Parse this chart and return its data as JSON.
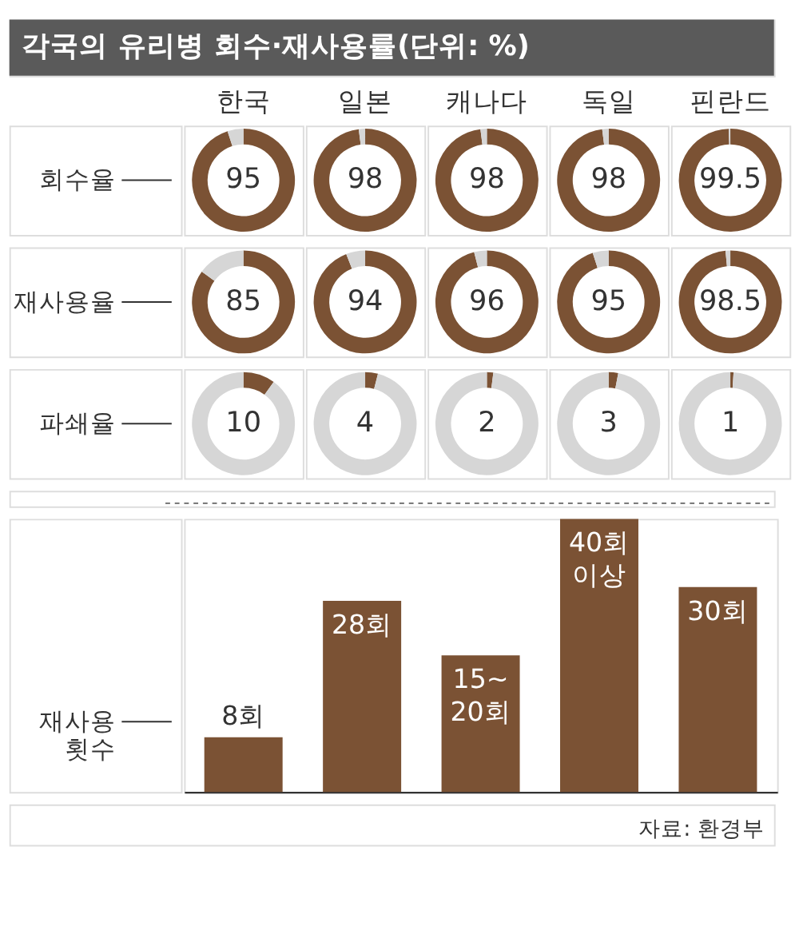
{
  "chart_data": [
    {
      "type": "other",
      "title": "각국의 유리병 회수·재사용률(단위: %)"
    },
    {
      "type": "donut",
      "title": "한국",
      "ylabel": "회수율",
      "categories": [
        null,
        null
      ],
      "values": [
        95,
        5
      ],
      "colors": [
        "#7b5234",
        "#d6d6d6"
      ],
      "value_labels": [
        "95",
        null
      ]
    },
    {
      "type": "donut",
      "title": "일본",
      "categories": [
        null,
        null
      ],
      "values": [
        98,
        2
      ],
      "colors": [
        "#7b5234",
        "#d6d6d6"
      ],
      "value_labels": [
        "98",
        null
      ]
    },
    {
      "type": "donut",
      "title": "캐나다",
      "categories": [
        null,
        null
      ],
      "values": [
        98,
        2
      ],
      "colors": [
        "#7b5234",
        "#d6d6d6"
      ],
      "value_labels": [
        "98",
        null
      ]
    },
    {
      "type": "donut",
      "title": "독일",
      "categories": [
        null,
        null
      ],
      "values": [
        98,
        2
      ],
      "colors": [
        "#7b5234",
        "#d6d6d6"
      ],
      "value_labels": [
        "98",
        null
      ]
    },
    {
      "type": "donut",
      "title": "핀란드",
      "categories": [
        null,
        null
      ],
      "values": [
        99.5,
        0.5
      ],
      "colors": [
        "#7b5234",
        "#d6d6d6"
      ],
      "value_labels": [
        "99.5",
        null
      ]
    },
    {
      "type": "donut",
      "ylabel": "재사용율",
      "categories": [
        null,
        null
      ],
      "values": [
        85,
        15
      ],
      "colors": [
        "#7b5234",
        "#d6d6d6"
      ],
      "value_labels": [
        "85",
        null
      ]
    },
    {
      "type": "donut",
      "categories": [
        null,
        null
      ],
      "values": [
        94,
        6
      ],
      "colors": [
        "#7b5234",
        "#d6d6d6"
      ],
      "value_labels": [
        "94",
        null
      ]
    },
    {
      "type": "donut",
      "categories": [
        null,
        null
      ],
      "values": [
        96,
        4
      ],
      "colors": [
        "#7b5234",
        "#d6d6d6"
      ],
      "value_labels": [
        "96",
        null
      ]
    },
    {
      "type": "donut",
      "categories": [
        null,
        null
      ],
      "values": [
        95,
        5
      ],
      "colors": [
        "#7b5234",
        "#d6d6d6"
      ],
      "value_labels": [
        "95",
        null
      ]
    },
    {
      "type": "donut",
      "categories": [
        null,
        null
      ],
      "values": [
        98.5,
        1.5
      ],
      "colors": [
        "#7b5234",
        "#d6d6d6"
      ],
      "value_labels": [
        "98.5",
        null
      ]
    },
    {
      "type": "donut",
      "ylabel": "파쇄율",
      "categories": [
        null,
        null
      ],
      "values": [
        10,
        90
      ],
      "colors": [
        "#7b5234",
        "#d6d6d6"
      ],
      "value_labels": [
        "10",
        null
      ]
    },
    {
      "type": "donut",
      "categories": [
        null,
        null
      ],
      "values": [
        4,
        96
      ],
      "colors": [
        "#7b5234",
        "#d6d6d6"
      ],
      "value_labels": [
        "4",
        null
      ]
    },
    {
      "type": "donut",
      "categories": [
        null,
        null
      ],
      "values": [
        2,
        98
      ],
      "colors": [
        "#7b5234",
        "#d6d6d6"
      ],
      "value_labels": [
        "2",
        null
      ]
    },
    {
      "type": "donut",
      "categories": [
        null,
        null
      ],
      "values": [
        3,
        97
      ],
      "colors": [
        "#7b5234",
        "#d6d6d6"
      ],
      "value_labels": [
        "3",
        null
      ]
    },
    {
      "type": "donut",
      "categories": [
        null,
        null
      ],
      "values": [
        1,
        99
      ],
      "colors": [
        "#7b5234",
        "#d6d6d6"
      ],
      "value_labels": [
        "1",
        null
      ]
    },
    {
      "type": "bar",
      "ylabel": "재사용 횟수",
      "categories": [
        null,
        null,
        null,
        null,
        null
      ],
      "values": [
        8,
        28,
        20,
        40,
        30
      ],
      "color": "#7b5234",
      "value_labels": [
        "8회",
        "28회",
        "15~20회",
        "40회 이상",
        "30회"
      ],
      "annotations": [
        "자료: 환경부"
      ]
    }
  ]
}
